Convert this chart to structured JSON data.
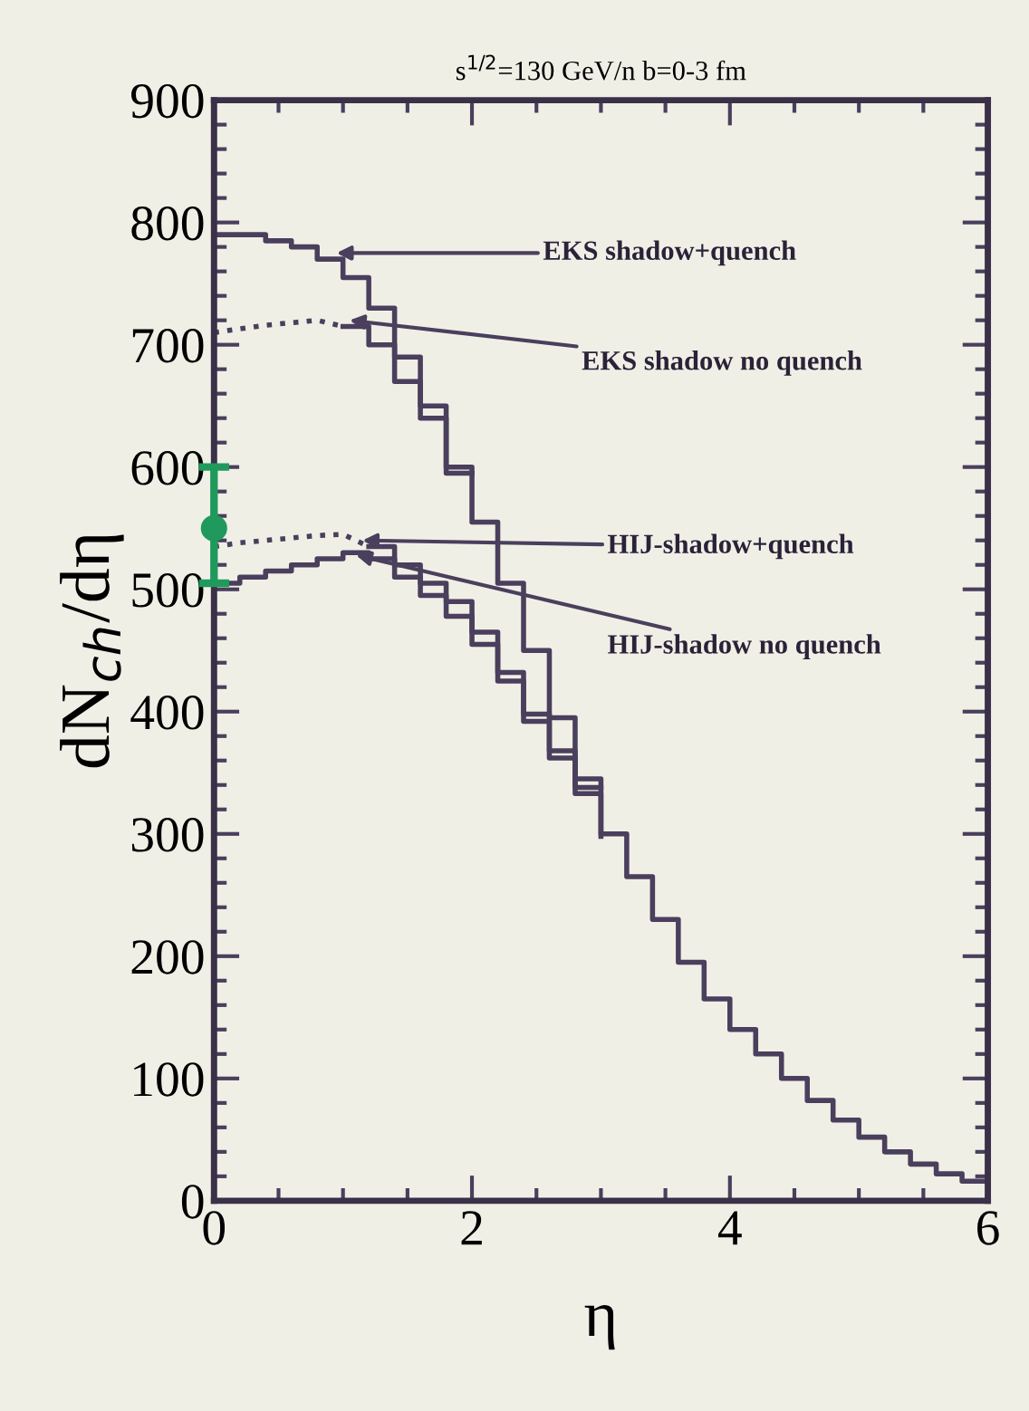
{
  "chart_data": {
    "type": "step",
    "title": "s$^{1/2}$=130 GeV/n b=0-3 fm",
    "xlabel": "η",
    "ylabel": "dN$_{ch}$/dη",
    "xlim": [
      0,
      6
    ],
    "ylim": [
      0,
      900
    ],
    "xticks": [
      0,
      2,
      4,
      6
    ],
    "yticks": [
      0,
      100,
      200,
      300,
      400,
      500,
      600,
      700,
      800,
      900
    ],
    "grid": false,
    "series": [
      {
        "color": "#4a3f5c",
        "line_style": "solid",
        "x": [
          0,
          0.2,
          0.4,
          0.6,
          0.8,
          1.0,
          1.2,
          1.4,
          1.6,
          1.8,
          2.0,
          2.2,
          2.4,
          2.6,
          2.8,
          3.0,
          3.2,
          3.4,
          3.6,
          3.8,
          4.0,
          4.2,
          4.4,
          4.6,
          4.8,
          5.0,
          5.2,
          5.4,
          5.6,
          5.8,
          6.0
        ],
        "values": [
          790,
          790,
          785,
          780,
          770,
          755,
          730,
          690,
          650,
          600,
          555,
          505,
          450,
          395,
          345,
          300,
          265,
          230,
          195,
          165,
          140,
          120,
          100,
          82,
          66,
          52,
          40,
          30,
          22,
          16,
          16
        ]
      },
      {
        "type": "line",
        "color": "#4a3f5c",
        "line_style": "dotted",
        "x": [
          0,
          0.2,
          0.4,
          0.6,
          0.8,
          1.0
        ],
        "values": [
          710,
          713,
          716,
          718,
          720,
          715
        ]
      },
      {
        "color": "#4a3f5c",
        "line_style": "solid",
        "x": [
          1.0,
          1.2,
          1.4,
          1.6,
          1.8,
          2.0
        ],
        "values": [
          715,
          700,
          670,
          640,
          595,
          595
        ]
      },
      {
        "type": "line",
        "color": "#4a3f5c",
        "line_style": "dotted",
        "x": [
          0,
          0.2,
          0.4,
          0.6,
          0.8,
          1.0,
          1.2
        ],
        "values": [
          535,
          538,
          540,
          542,
          544,
          545,
          535
        ]
      },
      {
        "color": "#4a3f5c",
        "line_style": "solid",
        "x": [
          1.2,
          1.4,
          1.6,
          1.8,
          2.0,
          2.2,
          2.4,
          2.6,
          2.8,
          3.0
        ],
        "values": [
          535,
          520,
          505,
          490,
          465,
          432,
          398,
          368,
          338,
          338
        ]
      },
      {
        "color": "#4a3f5c",
        "line_style": "solid",
        "x": [
          0,
          0.2,
          0.4,
          0.6,
          0.8,
          1.0,
          1.2,
          1.4,
          1.6,
          1.8,
          2.0,
          2.2,
          2.4,
          2.6,
          2.8,
          3.0
        ],
        "values": [
          505,
          510,
          515,
          520,
          525,
          530,
          525,
          510,
          495,
          478,
          455,
          425,
          392,
          362,
          333,
          298
        ]
      },
      {
        "type": "scatter",
        "color": "#1f9a5c",
        "marker": "circle",
        "x": [
          0
        ],
        "values": [
          550
        ],
        "errors": [
          [
            505,
            600
          ]
        ]
      }
    ],
    "annotations": [
      {
        "text": "EKS shadow+quench",
        "x": 0.95,
        "y": 775
      },
      {
        "text": "EKS shadow no quench",
        "x": 1.05,
        "y": 720
      },
      {
        "text": "HIJ-shadow+quench",
        "x": 1.15,
        "y": 540
      },
      {
        "text": "HIJ-shadow no quench",
        "x": 1.1,
        "y": 528
      }
    ]
  }
}
